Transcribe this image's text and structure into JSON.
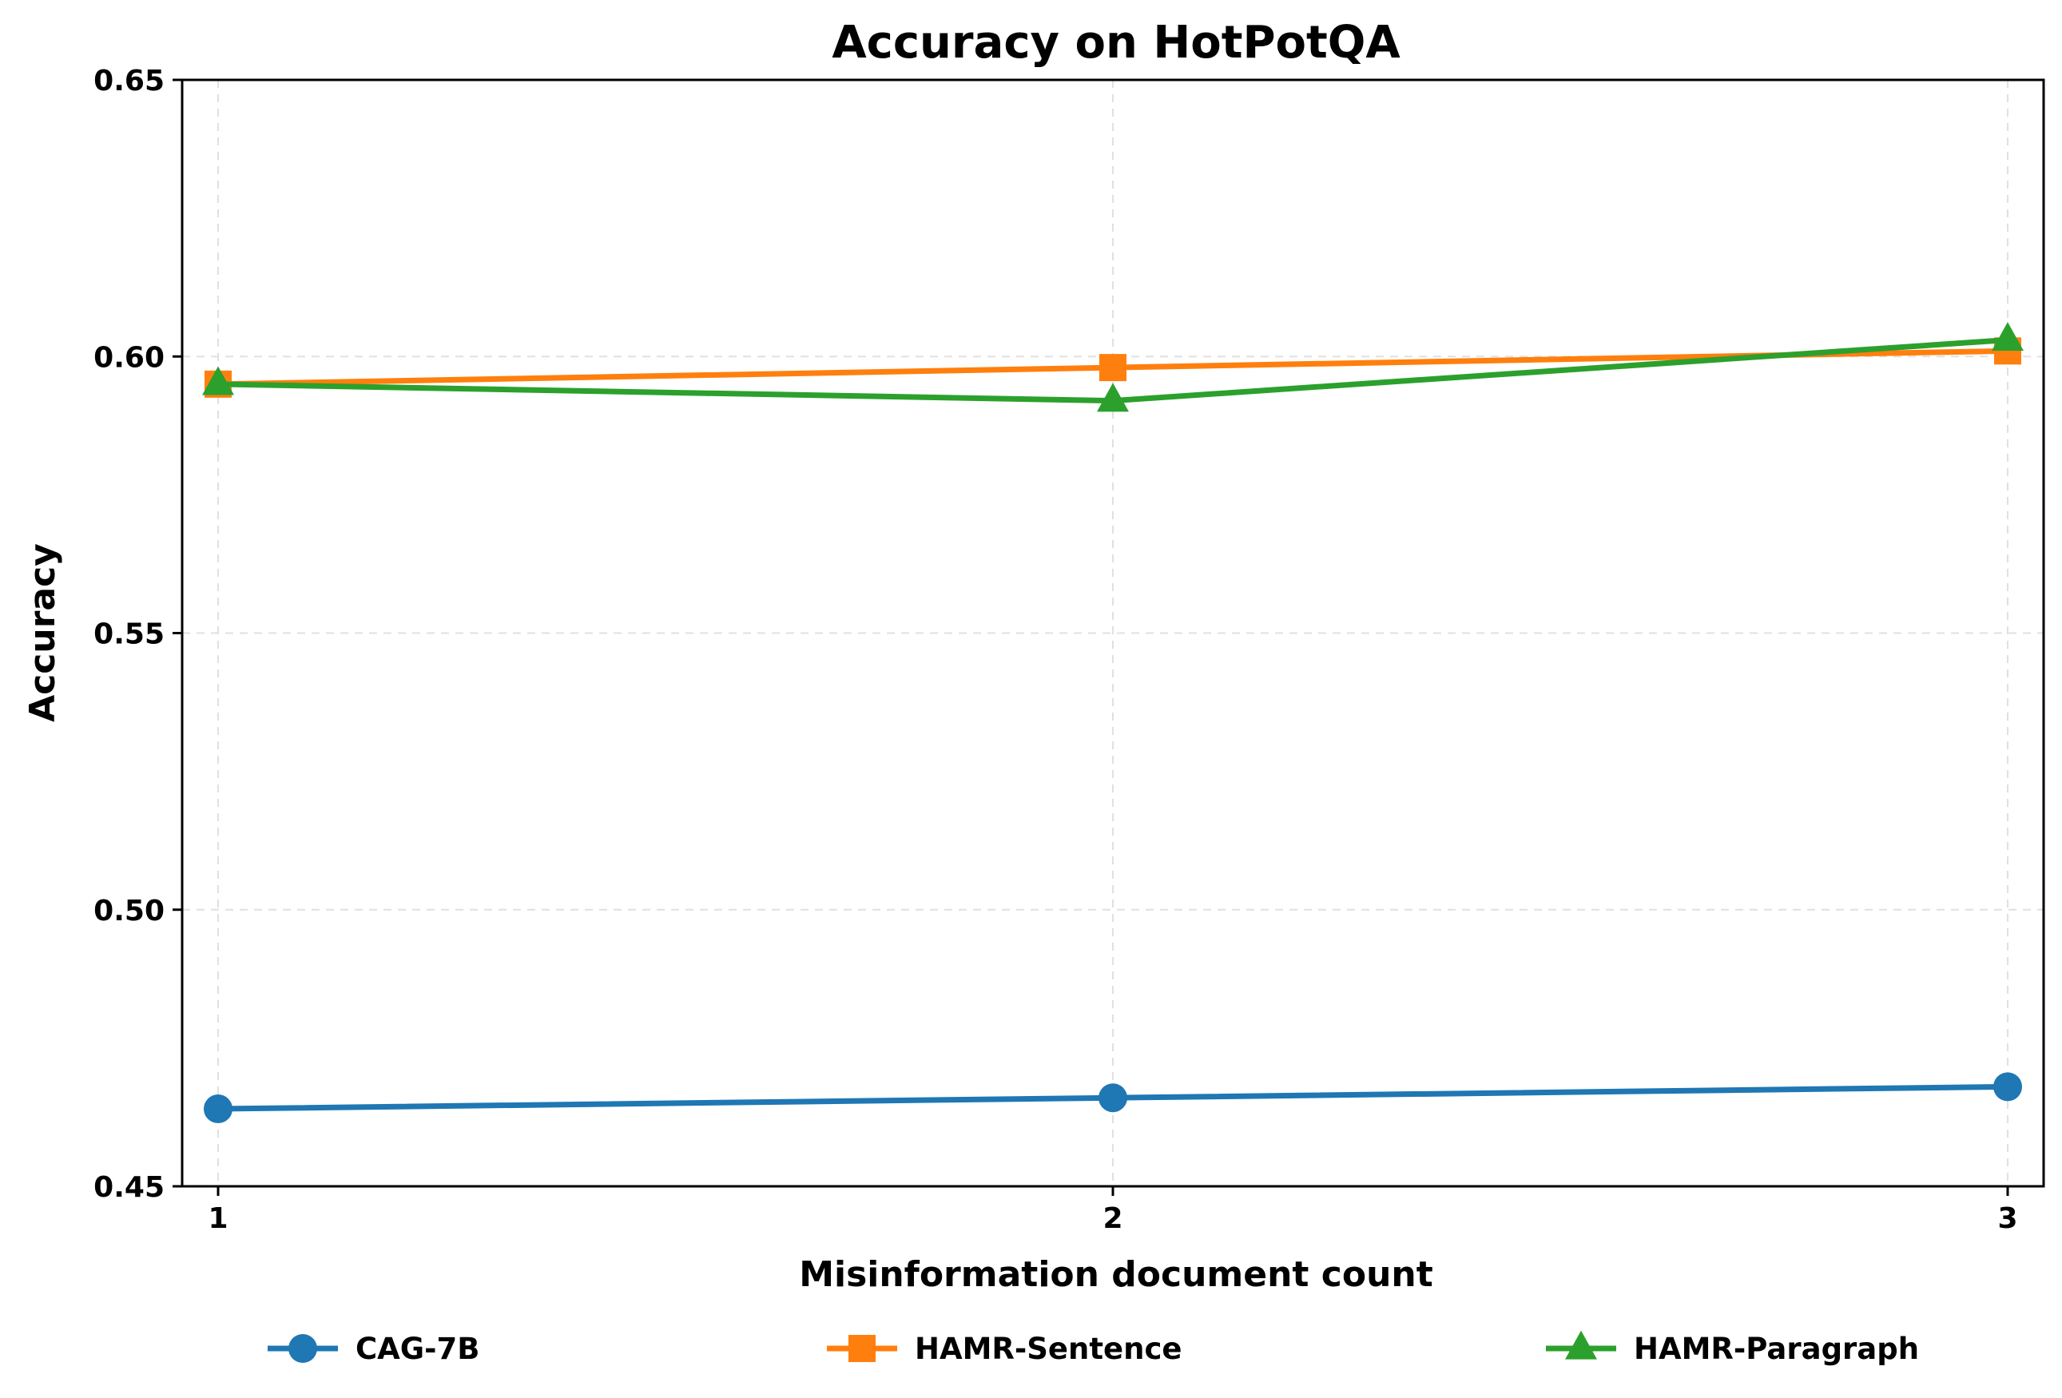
{
  "chart_data": {
    "type": "line",
    "title": "Accuracy on HotPotQA",
    "xlabel": "Misinformation document count",
    "ylabel": "Accuracy",
    "x": [
      1,
      2,
      3
    ],
    "x_ticks": [
      "1",
      "2",
      "3"
    ],
    "ylim": [
      0.45,
      0.65
    ],
    "y_ticks": [
      "0.45",
      "0.50",
      "0.55",
      "0.60",
      "0.65"
    ],
    "grid": true,
    "legend_position": "bottom",
    "series": [
      {
        "name": "CAG-7B",
        "values": [
          0.464,
          0.466,
          0.468
        ],
        "color": "#1f77b4",
        "marker": "circle"
      },
      {
        "name": "HAMR-Sentence",
        "values": [
          0.595,
          0.598,
          0.601
        ],
        "color": "#ff7f0e",
        "marker": "square"
      },
      {
        "name": "HAMR-Paragraph",
        "values": [
          0.595,
          0.592,
          0.603
        ],
        "color": "#2ca02c",
        "marker": "triangle"
      }
    ]
  }
}
